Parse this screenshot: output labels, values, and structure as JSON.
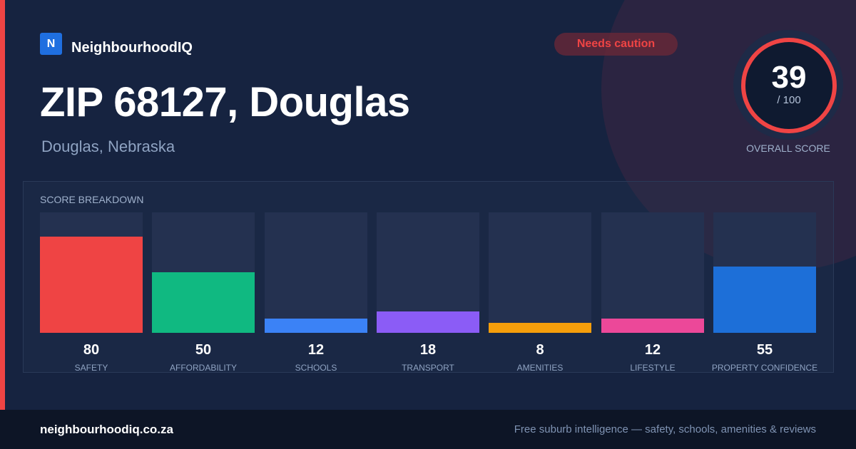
{
  "brand": {
    "logo_letter": "N",
    "name": "NeighbourhoodIQ",
    "logo_color": "#1f6fe0"
  },
  "badge": {
    "text": "Needs caution",
    "color": "#ef4444"
  },
  "header": {
    "title": "ZIP 68127, Douglas",
    "subtitle": "Douglas, Nebraska"
  },
  "overall": {
    "score": "39",
    "max": "/ 100",
    "label": "OVERALL SCORE",
    "ring_color": "#ef4444"
  },
  "breakdown": {
    "label": "SCORE BREAKDOWN",
    "max": 100,
    "items": [
      {
        "value": 80,
        "label": "SAFETY",
        "color": "#ef4444"
      },
      {
        "value": 50,
        "label": "AFFORDABILITY",
        "color": "#10b981"
      },
      {
        "value": 12,
        "label": "SCHOOLS",
        "color": "#3b82f6"
      },
      {
        "value": 18,
        "label": "TRANSPORT",
        "color": "#8b5cf6"
      },
      {
        "value": 8,
        "label": "AMENITIES",
        "color": "#f59e0b"
      },
      {
        "value": 12,
        "label": "LIFESTYLE",
        "color": "#ec4899"
      },
      {
        "value": 55,
        "label": "PROPERTY CONFIDENCE",
        "color": "#1d6fd8"
      }
    ]
  },
  "footer": {
    "url": "neighbourhoodiq.co.za",
    "tagline": "Free suburb intelligence — safety, schools, amenities & reviews"
  }
}
